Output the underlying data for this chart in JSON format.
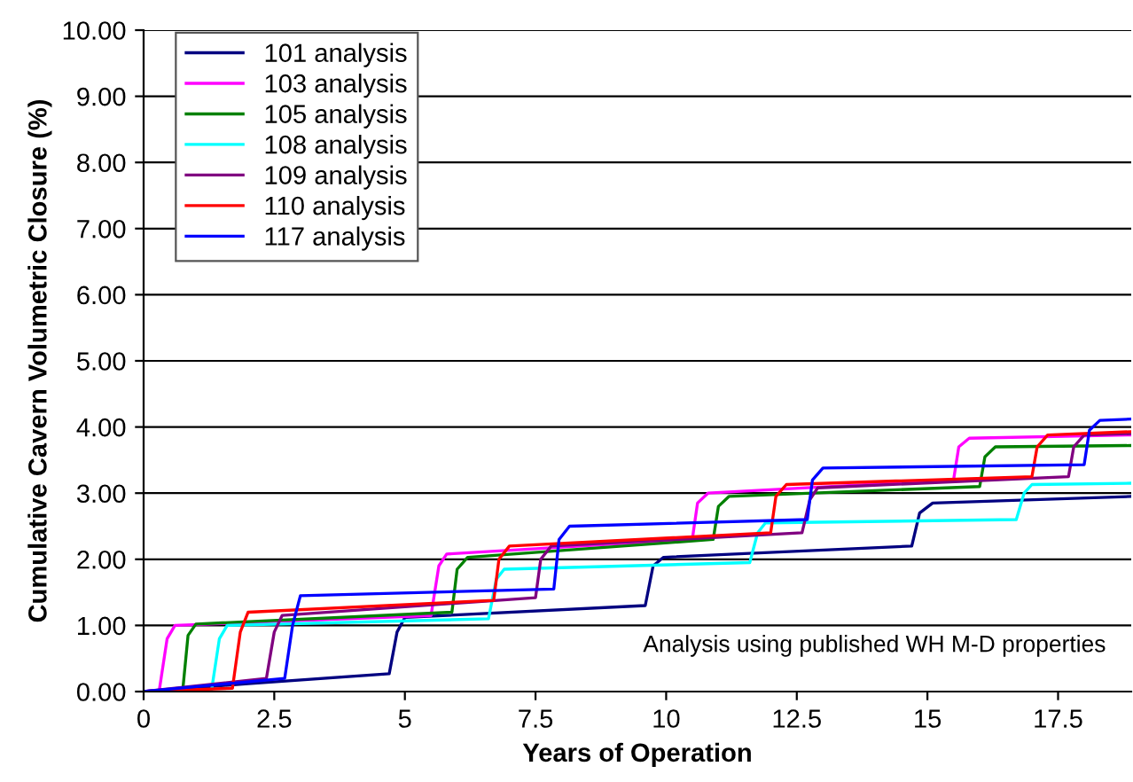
{
  "chart_data": {
    "type": "line",
    "xlabel": "Years of Operation",
    "ylabel": "Cumulative Cavern Volumetric Closure (%)",
    "xlim": [
      0,
      18.9
    ],
    "ylim": [
      0,
      10
    ],
    "xticks": [
      0,
      2.5,
      5,
      7.5,
      10,
      12.5,
      15,
      17.5
    ],
    "yticks": [
      {
        "value": 0,
        "label": "0.00"
      },
      {
        "value": 1,
        "label": "1.00"
      },
      {
        "value": 2,
        "label": "2.00"
      },
      {
        "value": 3,
        "label": "3.00"
      },
      {
        "value": 4,
        "label": "4.00"
      },
      {
        "value": 5,
        "label": "5.00"
      },
      {
        "value": 6,
        "label": "6.00"
      },
      {
        "value": 7,
        "label": "7.00"
      },
      {
        "value": 8,
        "label": "8.00"
      },
      {
        "value": 9,
        "label": "9.00"
      },
      {
        "value": 10,
        "label": "10.00"
      }
    ],
    "grid": "y",
    "legend": "top left",
    "marker": "none",
    "line_style": "solid",
    "annotations": [
      "Analysis using published WH M-D properties"
    ],
    "series": [
      {
        "name": "101 analysis",
        "color": "#000080",
        "x": [
          0,
          2,
          4.7,
          4.85,
          5.0,
          9.6,
          9.75,
          9.95,
          14.7,
          14.85,
          15.1,
          18.9
        ],
        "values": [
          0,
          0.12,
          0.27,
          0.9,
          1.12,
          1.3,
          1.9,
          2.03,
          2.2,
          2.7,
          2.85,
          2.95
        ]
      },
      {
        "name": "103 analysis",
        "color": "#ff00ff",
        "x": [
          0,
          0.3,
          0.45,
          0.6,
          5.5,
          5.65,
          5.8,
          10.5,
          10.6,
          10.8,
          15.5,
          15.6,
          15.8,
          18.9
        ],
        "values": [
          0,
          0.02,
          0.8,
          1.0,
          1.15,
          1.9,
          2.08,
          2.3,
          2.85,
          3.0,
          3.2,
          3.7,
          3.83,
          3.88
        ]
      },
      {
        "name": "105 analysis",
        "color": "#008000",
        "x": [
          0,
          0.75,
          0.85,
          1.0,
          5.9,
          6.0,
          6.2,
          10.9,
          11.0,
          11.2,
          16.0,
          16.1,
          16.3,
          18.9
        ],
        "values": [
          0,
          0.03,
          0.85,
          1.02,
          1.2,
          1.85,
          2.03,
          2.3,
          2.8,
          2.95,
          3.1,
          3.55,
          3.7,
          3.72
        ]
      },
      {
        "name": "108 analysis",
        "color": "#00ffff",
        "x": [
          0,
          1.3,
          1.45,
          1.6,
          6.6,
          6.75,
          6.9,
          11.6,
          11.75,
          11.9,
          16.7,
          16.85,
          17.0,
          18.9
        ],
        "values": [
          0,
          0.02,
          0.8,
          1.0,
          1.1,
          1.7,
          1.85,
          1.95,
          2.4,
          2.55,
          2.6,
          3.0,
          3.13,
          3.15
        ]
      },
      {
        "name": "109 analysis",
        "color": "#800080",
        "x": [
          0,
          2.35,
          2.5,
          2.65,
          7.5,
          7.6,
          7.8,
          12.6,
          12.75,
          12.9,
          17.7,
          17.8,
          18.0,
          18.9
        ],
        "values": [
          0,
          0.2,
          0.9,
          1.15,
          1.42,
          2.0,
          2.2,
          2.4,
          2.9,
          3.08,
          3.25,
          3.7,
          3.88,
          3.9
        ]
      },
      {
        "name": "110 analysis",
        "color": "#ff0000",
        "x": [
          0,
          1.7,
          1.85,
          2.0,
          6.7,
          6.8,
          7.0,
          12.0,
          12.1,
          12.3,
          17.0,
          17.1,
          17.3,
          18.9
        ],
        "values": [
          0,
          0.05,
          0.9,
          1.2,
          1.38,
          2.0,
          2.2,
          2.4,
          2.95,
          3.13,
          3.25,
          3.7,
          3.88,
          3.93
        ]
      },
      {
        "name": "117 analysis",
        "color": "#0000ff",
        "x": [
          0,
          2.7,
          2.85,
          3.0,
          7.85,
          7.95,
          8.15,
          12.7,
          12.8,
          13.0,
          18.0,
          18.1,
          18.3,
          18.9
        ],
        "values": [
          0,
          0.2,
          1.0,
          1.45,
          1.55,
          2.3,
          2.5,
          2.6,
          3.2,
          3.38,
          3.43,
          3.95,
          4.1,
          4.12
        ]
      }
    ]
  }
}
